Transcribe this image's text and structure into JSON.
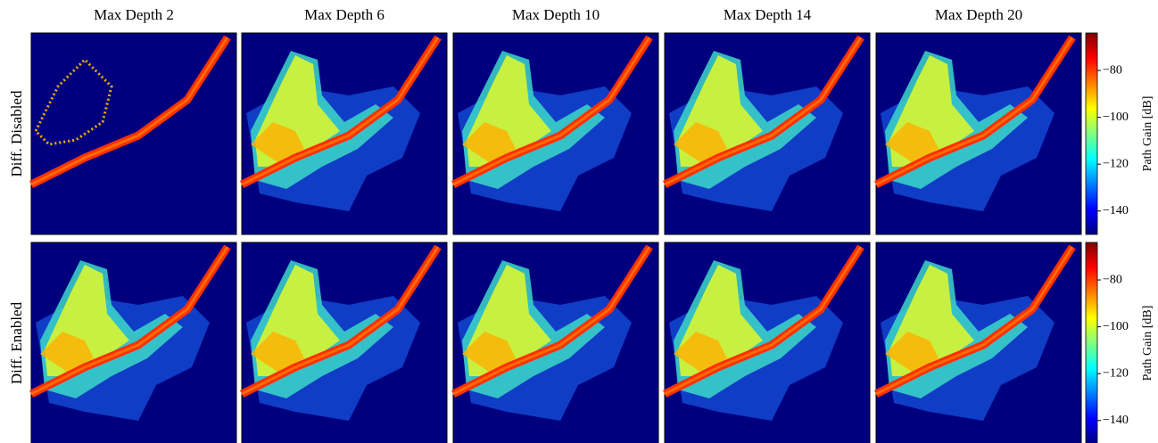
{
  "columns": [
    "Max Depth 2",
    "Max Depth 6",
    "Max Depth 10",
    "Max Depth 14",
    "Max Depth 20"
  ],
  "rows": [
    "Diff. Disabled",
    "Diff. Enabled"
  ],
  "colorbar": {
    "label": "Path Gain [dB]",
    "lim": [
      -150,
      -64
    ],
    "ticks": [
      {
        "value": -80,
        "label": "−80"
      },
      {
        "value": -100,
        "label": "−100"
      },
      {
        "value": -120,
        "label": "−120"
      },
      {
        "value": -140,
        "label": "−140"
      }
    ]
  }
}
